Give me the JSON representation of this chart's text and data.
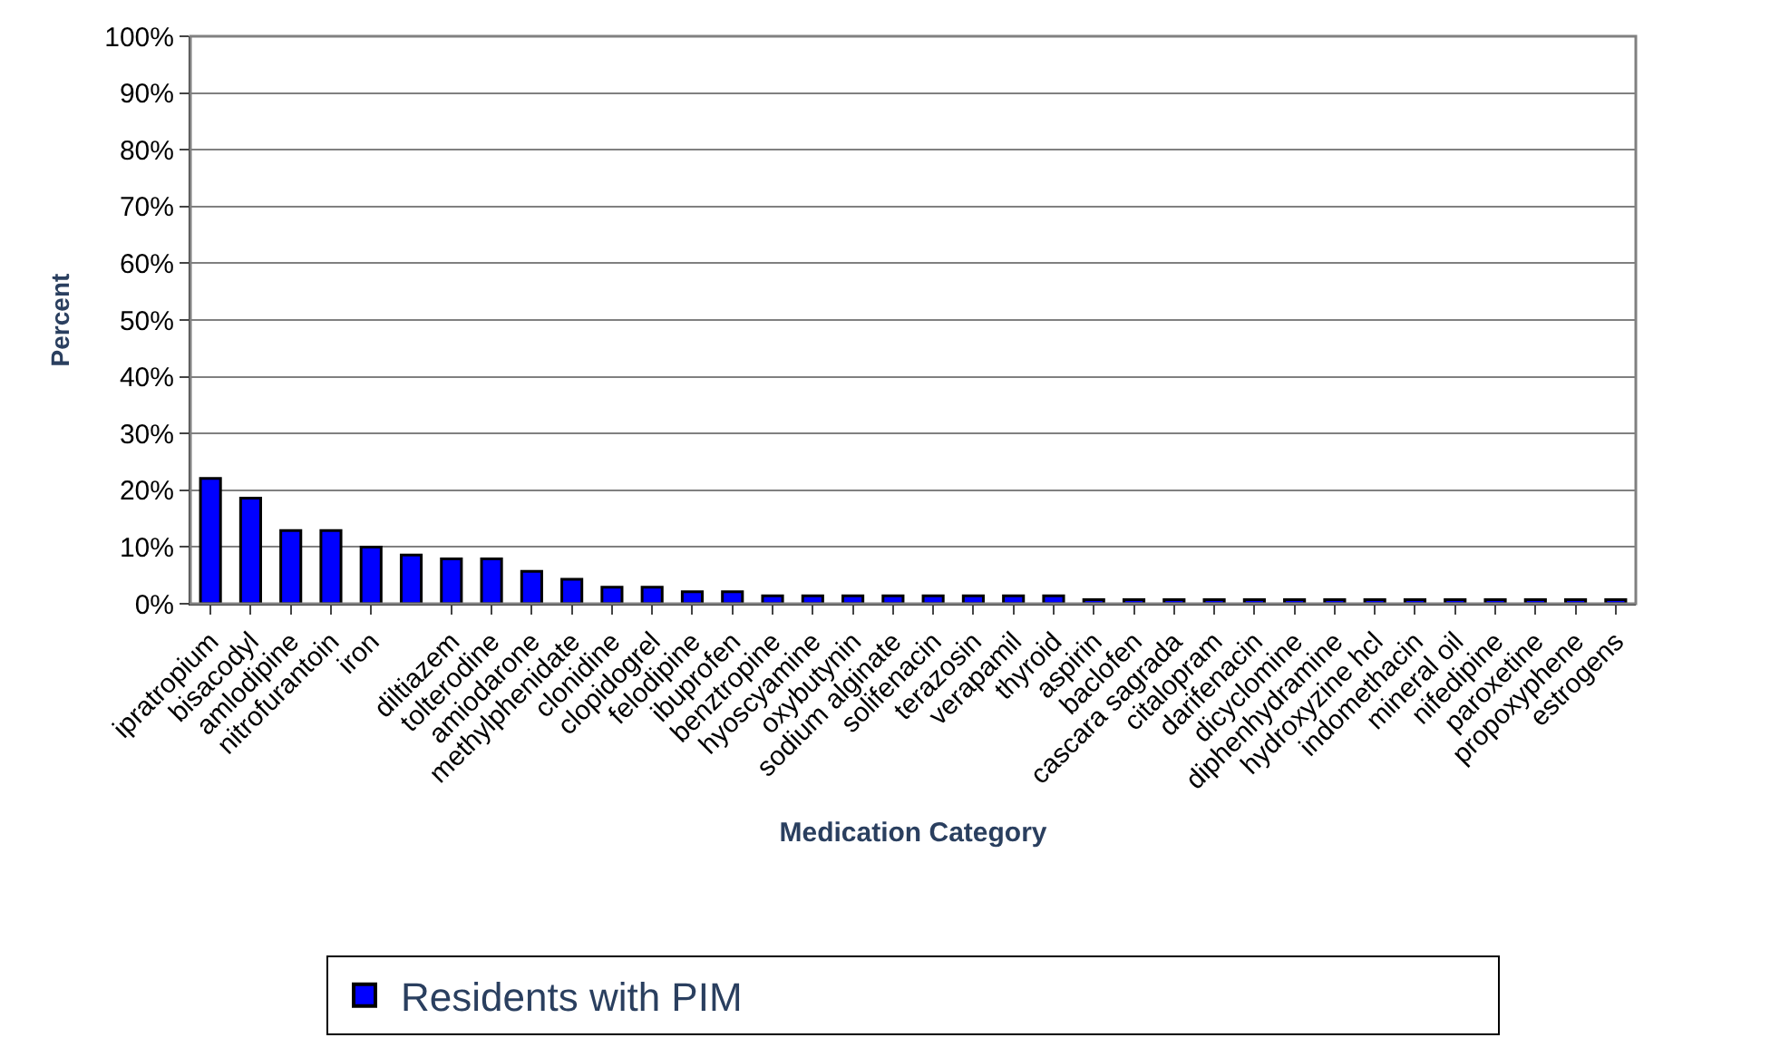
{
  "chart_data": {
    "type": "bar",
    "xlabel": "Medication Category",
    "ylabel": "Percent",
    "categories": [
      "ipratropium",
      "bisacodyl",
      "amlodipine",
      "nitrofurantoin",
      "iron",
      null,
      "diltiazem",
      "tolterodine",
      "amiodarone",
      "methylphenidate",
      "clonidine",
      "clopidogrel",
      "felodipine",
      "ibuprofen",
      "benztropine",
      "hyoscyamine",
      "oxybutynin",
      "sodium alginate",
      "solifenacin",
      "terazosin",
      "verapamil",
      "thyroid",
      "aspirin",
      "baclofen",
      "cascara sagrada",
      "citalopram",
      "darifenacin",
      "dicyclomine",
      "diphenhydramine",
      "hydroxyzine hcl",
      "indomethacin",
      "mineral oil",
      "nifedipine",
      "paroxetine",
      "propoxyphene",
      "estrogens"
    ],
    "series": [
      {
        "name": "Residents with PIM",
        "color": "#0000ff",
        "values": [
          22.1,
          18.6,
          12.9,
          12.9,
          10.0,
          8.6,
          7.9,
          7.9,
          5.7,
          4.3,
          2.9,
          2.9,
          2.1,
          2.1,
          1.4,
          1.4,
          1.4,
          1.4,
          1.4,
          1.4,
          1.4,
          1.4,
          0.7,
          0.7,
          0.7,
          0.7,
          0.7,
          0.7,
          0.7,
          0.7,
          0.7,
          0.7,
          0.7,
          0.7,
          0.7,
          0.7
        ]
      }
    ],
    "ylim": [
      0,
      100
    ],
    "yticks": [
      {
        "value": 0,
        "label": "0%"
      },
      {
        "value": 10,
        "label": "10%"
      },
      {
        "value": 20,
        "label": "20%"
      },
      {
        "value": 30,
        "label": "30%"
      },
      {
        "value": 40,
        "label": "40%"
      },
      {
        "value": 50,
        "label": "50%"
      },
      {
        "value": 60,
        "label": "60%"
      },
      {
        "value": 70,
        "label": "70%"
      },
      {
        "value": 80,
        "label": "80%"
      },
      {
        "value": 90,
        "label": "90%"
      },
      {
        "value": 100,
        "label": "100%"
      }
    ],
    "grid": "y",
    "legend": "bottom"
  }
}
